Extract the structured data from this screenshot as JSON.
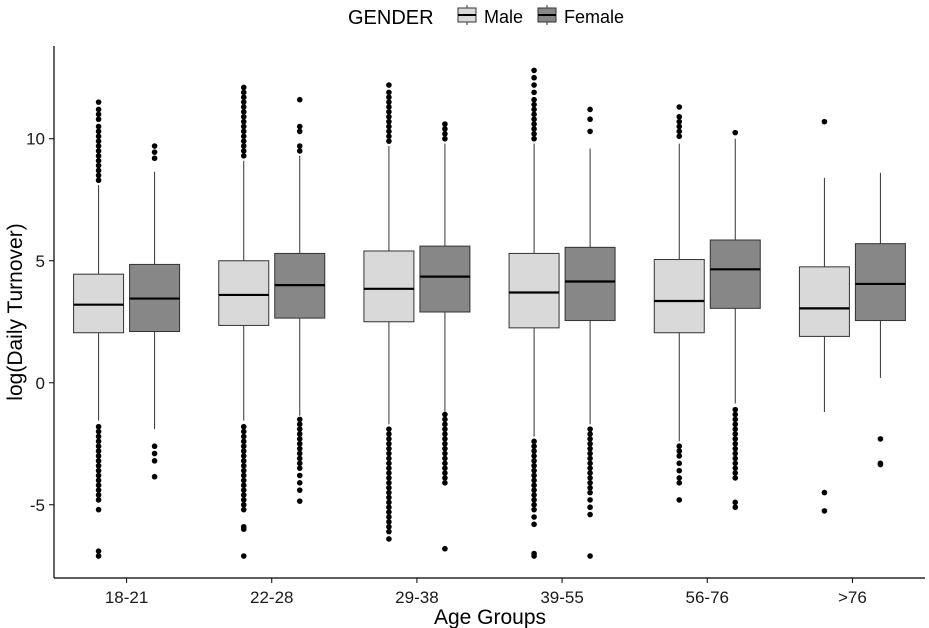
{
  "chart_data": {
    "type": "boxplot",
    "xlabel": "Age Groups",
    "ylabel": "log(Daily Turnover)",
    "ylim": [
      -8,
      13.8
    ],
    "yticks": [
      -5,
      0,
      5,
      10
    ],
    "categories": [
      "18-21",
      "22-28",
      "29-38",
      "39-55",
      "56-76",
      ">76"
    ],
    "grid": false,
    "legend": {
      "title": "GENDER",
      "position": "top",
      "entries": [
        "Male",
        "Female"
      ]
    },
    "colors": {
      "Male": "#d9d9d9",
      "Female": "#878787"
    },
    "series": [
      {
        "name": "Male",
        "boxes": [
          {
            "q1": 2.05,
            "median": 3.2,
            "q3": 4.45,
            "whisker_low": -1.55,
            "whisker_high": 8.1,
            "outliers_high": [
              8.3,
              8.5,
              8.7,
              8.9,
              9.1,
              9.3,
              9.5,
              9.7,
              9.9,
              10.1,
              10.3,
              10.5,
              10.8,
              11.0,
              11.2,
              11.5
            ],
            "outliers_low": [
              -1.8,
              -2.0,
              -2.2,
              -2.4,
              -2.6,
              -2.8,
              -3.0,
              -3.2,
              -3.4,
              -3.6,
              -3.8,
              -4.0,
              -4.2,
              -4.4,
              -4.6,
              -4.8,
              -5.2,
              -6.9,
              -7.1
            ]
          },
          {
            "q1": 2.35,
            "median": 3.6,
            "q3": 5.0,
            "whisker_low": -1.55,
            "whisker_high": 9.1,
            "outliers_high": [
              9.3,
              9.5,
              9.7,
              9.9,
              10.1,
              10.3,
              10.5,
              10.7,
              10.9,
              11.1,
              11.3,
              11.5,
              11.7,
              11.9,
              12.1
            ],
            "outliers_low": [
              -1.8,
              -2.0,
              -2.2,
              -2.4,
              -2.6,
              -2.8,
              -3.0,
              -3.2,
              -3.4,
              -3.6,
              -3.8,
              -4.0,
              -4.2,
              -4.4,
              -4.6,
              -4.8,
              -5.0,
              -5.2,
              -5.9,
              -6.0,
              -7.1
            ]
          },
          {
            "q1": 2.5,
            "median": 3.85,
            "q3": 5.4,
            "whisker_low": -1.7,
            "whisker_high": 9.7,
            "outliers_high": [
              9.9,
              10.1,
              10.3,
              10.5,
              10.7,
              10.9,
              11.1,
              11.3,
              11.5,
              11.7,
              11.9,
              12.2
            ],
            "outliers_low": [
              -1.9,
              -2.1,
              -2.3,
              -2.5,
              -2.7,
              -2.9,
              -3.1,
              -3.3,
              -3.5,
              -3.7,
              -3.9,
              -4.1,
              -4.3,
              -4.5,
              -4.7,
              -4.9,
              -5.1,
              -5.3,
              -5.5,
              -5.7,
              -5.9,
              -6.1,
              -6.4
            ]
          },
          {
            "q1": 2.25,
            "median": 3.7,
            "q3": 5.3,
            "whisker_low": -2.2,
            "whisker_high": 9.8,
            "outliers_high": [
              10.0,
              10.2,
              10.4,
              10.6,
              10.8,
              11.0,
              11.2,
              11.4,
              11.6,
              11.9,
              12.2,
              12.5,
              12.8
            ],
            "outliers_low": [
              -2.4,
              -2.6,
              -2.8,
              -3.0,
              -3.2,
              -3.4,
              -3.6,
              -3.8,
              -4.0,
              -4.2,
              -4.4,
              -4.6,
              -4.8,
              -5.0,
              -5.2,
              -5.5,
              -5.8,
              -7.0,
              -7.1
            ]
          },
          {
            "q1": 2.05,
            "median": 3.35,
            "q3": 5.05,
            "whisker_low": -2.4,
            "whisker_high": 9.8,
            "outliers_high": [
              10.1,
              10.3,
              10.5,
              10.7,
              10.9,
              11.3
            ],
            "outliers_low": [
              -2.6,
              -2.8,
              -3.0,
              -3.3,
              -3.6,
              -3.9,
              -4.1,
              -4.8
            ]
          },
          {
            "q1": 1.9,
            "median": 3.05,
            "q3": 4.75,
            "whisker_low": -1.2,
            "whisker_high": 8.4,
            "outliers_high": [
              10.7
            ],
            "outliers_low": [
              -4.5,
              -5.25
            ]
          }
        ]
      },
      {
        "name": "Female",
        "boxes": [
          {
            "q1": 2.1,
            "median": 3.45,
            "q3": 4.85,
            "whisker_low": -1.9,
            "whisker_high": 8.65,
            "outliers_high": [
              9.2,
              9.45,
              9.7
            ],
            "outliers_low": [
              -2.6,
              -2.9,
              -3.2,
              -3.85
            ]
          },
          {
            "q1": 2.65,
            "median": 4.0,
            "q3": 5.3,
            "whisker_low": -1.35,
            "whisker_high": 9.3,
            "outliers_high": [
              9.5,
              9.7,
              10.3,
              10.5,
              11.6
            ],
            "outliers_low": [
              -1.5,
              -1.7,
              -1.9,
              -2.1,
              -2.3,
              -2.5,
              -2.7,
              -2.9,
              -3.1,
              -3.3,
              -3.5,
              -3.8,
              -4.1,
              -4.4,
              -4.85
            ]
          },
          {
            "q1": 2.9,
            "median": 4.35,
            "q3": 5.6,
            "whisker_low": -1.2,
            "whisker_high": 9.8,
            "outliers_high": [
              10.0,
              10.2,
              10.4,
              10.6
            ],
            "outliers_low": [
              -1.3,
              -1.5,
              -1.7,
              -1.9,
              -2.1,
              -2.3,
              -2.5,
              -2.7,
              -2.9,
              -3.1,
              -3.3,
              -3.5,
              -3.7,
              -3.9,
              -4.1,
              -6.8
            ]
          },
          {
            "q1": 2.55,
            "median": 4.15,
            "q3": 5.55,
            "whisker_low": -1.7,
            "whisker_high": 9.6,
            "outliers_high": [
              10.3,
              10.8,
              11.2
            ],
            "outliers_low": [
              -1.9,
              -2.1,
              -2.3,
              -2.5,
              -2.7,
              -2.9,
              -3.1,
              -3.3,
              -3.5,
              -3.7,
              -3.9,
              -4.1,
              -4.3,
              -4.5,
              -4.8,
              -5.1,
              -5.4,
              -7.1
            ]
          },
          {
            "q1": 3.05,
            "median": 4.65,
            "q3": 5.85,
            "whisker_low": -0.85,
            "whisker_high": 10.0,
            "outliers_high": [
              10.25
            ],
            "outliers_low": [
              -1.1,
              -1.3,
              -1.5,
              -1.7,
              -1.9,
              -2.1,
              -2.3,
              -2.5,
              -2.7,
              -2.9,
              -3.1,
              -3.3,
              -3.5,
              -3.7,
              -3.9,
              -4.9,
              -5.1
            ]
          },
          {
            "q1": 2.55,
            "median": 4.05,
            "q3": 5.7,
            "whisker_low": 0.2,
            "whisker_high": 8.6,
            "outliers_high": [],
            "outliers_low": [
              -2.3,
              -3.3,
              -3.35
            ]
          }
        ]
      }
    ]
  }
}
